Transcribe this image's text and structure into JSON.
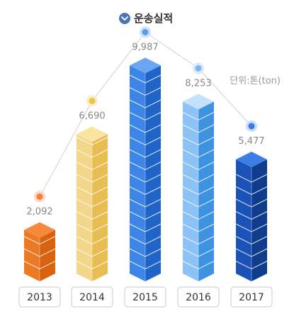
{
  "chart_data": {
    "type": "bar",
    "title": "운송실적",
    "unit_label": "단위:톤(ton)",
    "categories": [
      "2013",
      "2014",
      "2015",
      "2016",
      "2017"
    ],
    "values": [
      2092,
      6690,
      9987,
      8253,
      5477
    ],
    "value_labels": [
      "2,092",
      "6,690",
      "9,987",
      "8,253",
      "5,477"
    ],
    "ylim": [
      0,
      10000
    ],
    "grid": false,
    "legend": "none",
    "trend_line": true
  },
  "colors": {
    "title_icon": "#4a76b0",
    "label_text": "#888888",
    "category_text": "#333333",
    "category_box_border": "#c8c8c8",
    "trend_line": "#d0d0d0",
    "bars": [
      {
        "top": "#f58a3c",
        "left": "#ec7a24",
        "right": "#d8620f",
        "dot": "#f0843a",
        "halo": "#fcd8c0"
      },
      {
        "top": "#fbe3a0",
        "left": "#f2d68a",
        "right": "#e8be52",
        "dot": "#ecc34a",
        "halo": "#faeec8"
      },
      {
        "top": "#6aa6f2",
        "left": "#3d86e8",
        "right": "#1f64c6",
        "dot": "#5b9cf0",
        "halo": "#cfe2fb"
      },
      {
        "top": "#c4e0fb",
        "left": "#8cc2f6",
        "right": "#3f92e2",
        "dot": "#7eb6ee",
        "halo": "#dceaf8"
      },
      {
        "top": "#3c7de6",
        "left": "#1a52b8",
        "right": "#103c8e",
        "dot": "#3a7ae2",
        "halo": "#c9dcf6"
      }
    ]
  }
}
